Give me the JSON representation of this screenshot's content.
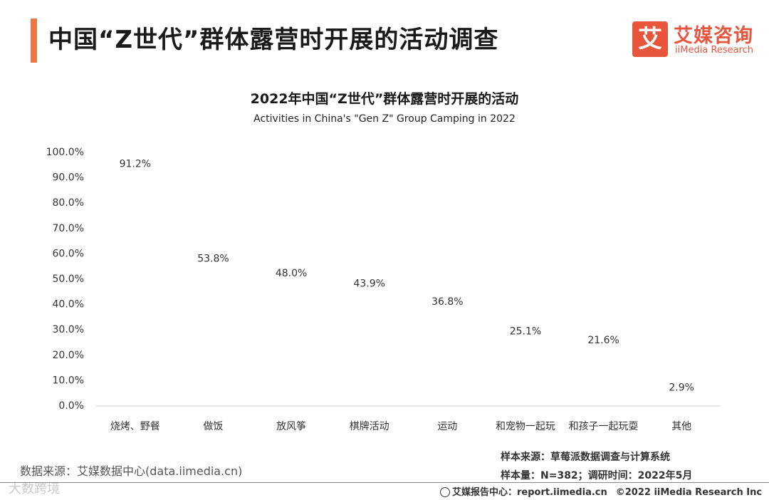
{
  "header": {
    "title": "中国“Z世代”群体露营时开展的活动调查",
    "logo": {
      "mark": "艾",
      "cn": "艾媒咨询",
      "en": "iiMedia Research"
    }
  },
  "chart_data": {
    "type": "bar",
    "title": "2022年中国“Z世代”群体露营时开展的活动",
    "subtitle": "Activities in China's \"Gen Z\" Group Camping in 2022",
    "xlabel": "",
    "ylabel": "",
    "ylim": [
      0,
      100
    ],
    "yticks": [
      "0.0%",
      "10.0%",
      "20.0%",
      "30.0%",
      "40.0%",
      "50.0%",
      "60.0%",
      "70.0%",
      "80.0%",
      "90.0%",
      "100.0%"
    ],
    "categories": [
      "烧烤、野餐",
      "做饭",
      "放风筝",
      "棋牌活动",
      "运动",
      "和宠物一起玩",
      "和孩子一起玩耍",
      "其他"
    ],
    "values": [
      91.2,
      53.8,
      48.0,
      43.9,
      36.8,
      25.1,
      21.6,
      2.9
    ],
    "value_labels": [
      "91.2%",
      "53.8%",
      "48.0%",
      "43.9%",
      "36.8%",
      "25.1%",
      "21.6%",
      "2.9%"
    ],
    "bar_style": "pictograph-stacked-pot-icons",
    "color": "#f07843"
  },
  "footer": {
    "data_source": "数据来源：艾媒数据中心(data.iimedia.cn)",
    "sample_source": "样本来源：草莓派数据调查与计算系统",
    "sample_size": "样本量：N=382；调研时间：2022年5月",
    "report_center": "艾媒报告中心：report.iimedia.cn",
    "copyright": "©2022  iiMedia Research  Inc",
    "watermark": "大数跨境"
  }
}
